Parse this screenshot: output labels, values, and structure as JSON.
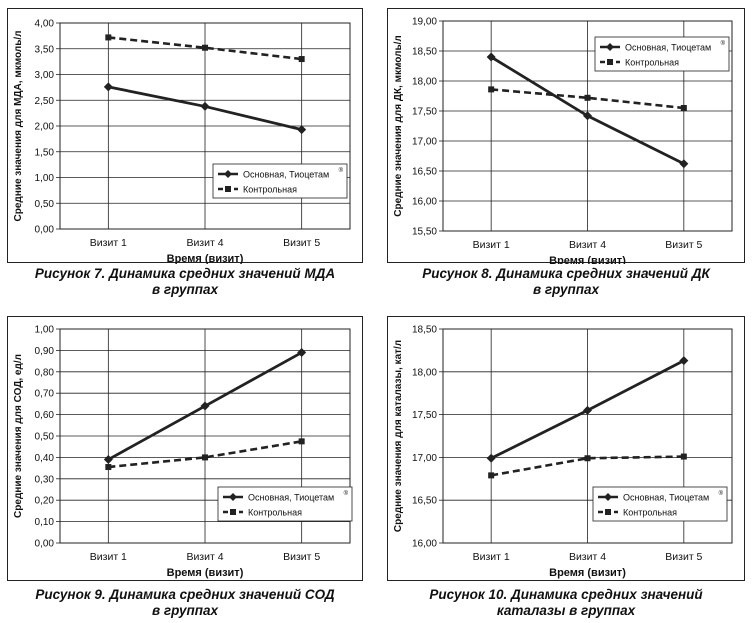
{
  "chart_data": [
    {
      "type": "line",
      "caption_line1": "Рисунок 7. Динамика средних значений МДА",
      "caption_line2": "в группах",
      "xlabel": "Время (визит)",
      "ylabel": "Средние значения для МДА, мкмоль/л",
      "categories": [
        "Визит 1",
        "Визит 4",
        "Визит 5"
      ],
      "ylim": [
        0,
        4
      ],
      "yticks": [
        "0,00",
        "0,50",
        "1,00",
        "1,50",
        "2,00",
        "2,50",
        "3,00",
        "3,50",
        "4,00"
      ],
      "series": [
        {
          "name": "Основная, Тиоцетам",
          "values": [
            2.76,
            2.38,
            1.93
          ],
          "style": "solid"
        },
        {
          "name": "Контрольная",
          "values": [
            3.72,
            3.52,
            3.3
          ],
          "style": "dashed"
        }
      ],
      "legend": "bottom-right",
      "grid": true
    },
    {
      "type": "line",
      "caption_line1": "Рисунок 8. Динамика средних значений ДК",
      "caption_line2": "в группах",
      "xlabel": "Время (визит)",
      "ylabel": "Средние значения для ДК, мкмоль/л",
      "categories": [
        "Визит 1",
        "Визит 4",
        "Визит 5"
      ],
      "ylim": [
        15.5,
        19
      ],
      "yticks": [
        "15,50",
        "16,00",
        "16,50",
        "17,00",
        "17,50",
        "18,00",
        "18,50",
        "19,00"
      ],
      "series": [
        {
          "name": "Основная, Тиоцетам",
          "values": [
            18.4,
            17.42,
            16.62
          ],
          "style": "solid"
        },
        {
          "name": "Контрольная",
          "values": [
            17.86,
            17.72,
            17.55
          ],
          "style": "dashed"
        }
      ],
      "legend": "top-right",
      "grid": true
    },
    {
      "type": "line",
      "caption_line1": "Рисунок 9. Динамика средних значений СОД",
      "caption_line2": "в группах",
      "xlabel": "Время (визит)",
      "ylabel": "Средние значения для СОД, ед/л",
      "categories": [
        "Визит 1",
        "Визит 4",
        "Визит 5"
      ],
      "ylim": [
        0,
        1
      ],
      "yticks": [
        "0,00",
        "0,10",
        "0,20",
        "0,30",
        "0,40",
        "0,50",
        "0,60",
        "0,70",
        "0,80",
        "0,90",
        "1,00"
      ],
      "series": [
        {
          "name": "Основная, Тиоцетам",
          "values": [
            0.39,
            0.64,
            0.89
          ],
          "style": "solid"
        },
        {
          "name": "Контрольная",
          "values": [
            0.355,
            0.4,
            0.475
          ],
          "style": "dashed"
        }
      ],
      "legend": "bottom-right",
      "grid": true
    },
    {
      "type": "line",
      "caption_line1": "Рисунок 10. Динамика средних значений",
      "caption_line2": "каталазы в группах",
      "xlabel": "Время (визит)",
      "ylabel": "Средние значения для каталазы, кат/л",
      "categories": [
        "Визит 1",
        "Визит 4",
        "Визит 5"
      ],
      "ylim": [
        16,
        18.5
      ],
      "yticks": [
        "16,00",
        "16,50",
        "17,00",
        "17,50",
        "18,00",
        "18,50"
      ],
      "series": [
        {
          "name": "Основная, Тиоцетам",
          "values": [
            16.99,
            17.55,
            18.13
          ],
          "style": "solid"
        },
        {
          "name": "Контрольная",
          "values": [
            16.79,
            16.99,
            17.01
          ],
          "style": "dashed"
        }
      ],
      "legend": "bottom-right",
      "grid": true
    }
  ]
}
